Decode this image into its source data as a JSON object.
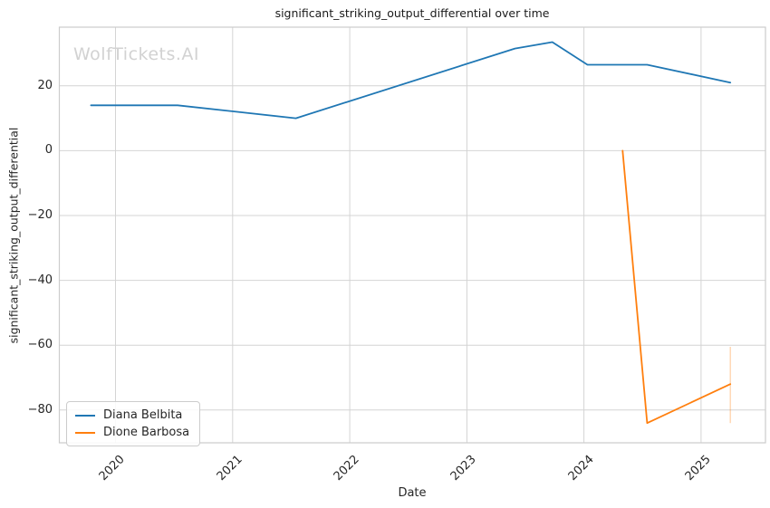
{
  "chart_data": {
    "type": "line",
    "title": "significant_striking_output_differential over time",
    "xlabel": "Date",
    "ylabel": "significant_striking_output_differential",
    "watermark": "WolfTickets.AI",
    "grid": true,
    "legend_position": "lower left",
    "xlim": [
      2019.52,
      2025.55
    ],
    "ylim": [
      -90.1,
      38.1
    ],
    "x_ticks": {
      "values": [
        2020,
        2021,
        2022,
        2023,
        2024,
        2025
      ],
      "labels": [
        "2020",
        "2021",
        "2022",
        "2023",
        "2024",
        "2025"
      ]
    },
    "y_ticks": {
      "values": [
        20,
        0,
        -20,
        -40,
        -60,
        -80
      ],
      "labels": [
        "20",
        "0",
        "−20",
        "−40",
        "−60",
        "−80"
      ]
    },
    "series": [
      {
        "name": "Diana Belbita",
        "color": "#1f77b4",
        "points": [
          [
            2019.79,
            14
          ],
          [
            2020.53,
            14
          ],
          [
            2021.54,
            10
          ],
          [
            2023.41,
            31.5
          ],
          [
            2023.73,
            33.5
          ],
          [
            2024.03,
            26.5
          ],
          [
            2024.54,
            26.5
          ],
          [
            2025.25,
            21
          ]
        ]
      },
      {
        "name": "Dione Barbosa",
        "color": "#ff7f0e",
        "points": [
          [
            2024.33,
            0
          ],
          [
            2024.54,
            -84
          ],
          [
            2025.25,
            -72
          ]
        ],
        "error_bar": {
          "x": 2025.25,
          "y_low": -84,
          "y_high": -60.5,
          "opacity": 0.35
        }
      }
    ],
    "colors": {
      "grid": "#d4d4d4",
      "spine": "#cccccc",
      "text": "#262626",
      "watermark": "#d2d2d2",
      "series_blue": "#1f77b4",
      "series_orange": "#ff7f0e"
    }
  }
}
